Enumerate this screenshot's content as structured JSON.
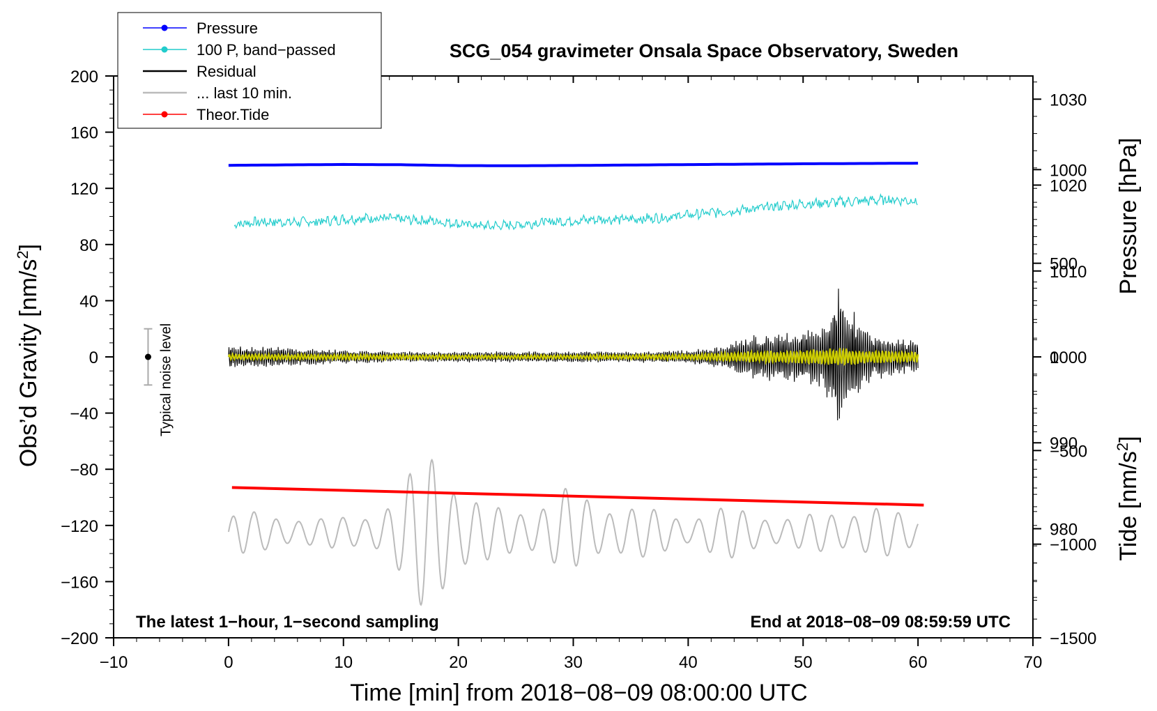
{
  "chart_data": {
    "type": "line",
    "title": "SCG_054 gravimeter Onsala Space Observatory, Sweden",
    "xlabel": "Time [min] from 2018−08−09 08:00:00 UTC",
    "ylabel_left": "Obs’d Gravity [nm/s",
    "ylabel_left_sup": "2",
    "ylabel_left_close": "]",
    "ylabel_pressure": "Pressure [hPa]",
    "ylabel_tide": "Tide [nm/s",
    "ylabel_tide_sup": "2",
    "ylabel_tide_close": "]",
    "xlim": [
      -10,
      70
    ],
    "ylim": [
      -200,
      200
    ],
    "pressure_lim": [
      967.3,
      1032.7
    ],
    "tide_lim": [
      -1500,
      1500
    ],
    "x_ticks": [
      -10,
      0,
      10,
      20,
      30,
      40,
      50,
      60,
      70
    ],
    "x_tick_labels": [
      "−10",
      "0",
      "10",
      "20",
      "30",
      "40",
      "50",
      "60",
      "70"
    ],
    "y_ticks": [
      200,
      160,
      120,
      80,
      40,
      0,
      -40,
      -80,
      -120,
      -160,
      -200
    ],
    "y_tick_labels": [
      "200",
      "160",
      "120",
      "80",
      "40",
      "0",
      "−40",
      "−80",
      "−120",
      "−160",
      "−200"
    ],
    "pressure_ticks": [
      1030,
      1020,
      1010,
      1000,
      990,
      980
    ],
    "pressure_tick_labels": [
      "1030",
      "1020",
      "1010",
      "1000",
      "990",
      "980"
    ],
    "tide_ticks": [
      1000,
      500,
      0,
      -500,
      -1000,
      -1500
    ],
    "tide_tick_labels": [
      "1000",
      "500",
      "0",
      "−500",
      "−1000",
      "−1500"
    ],
    "note_left": "The latest 1−hour, 1−second sampling",
    "note_right": "End at 2018−08−09 08:59:59 UTC",
    "noise_label": "Typical noise level",
    "noise_bar": {
      "x": -7,
      "center": 0,
      "half_range": 20
    },
    "legend": [
      {
        "label": "Pressure",
        "color": "#0000ff",
        "marker": true
      },
      {
        "label": "100 P, band−passed",
        "color": "#22cccc",
        "marker": true
      },
      {
        "label": "Residual",
        "color": "#000000",
        "marker": false
      },
      {
        "label": "... last 10 min.",
        "color": "#bbbbbb",
        "marker": false
      },
      {
        "label": "Theor.Tide",
        "color": "#ff0000",
        "marker": true
      }
    ],
    "series": [
      {
        "name": "Pressure",
        "color": "#0000ff",
        "x": [
          0,
          5,
          10,
          15,
          20,
          25,
          30,
          35,
          40,
          45,
          50,
          55,
          60
        ],
        "values": [
          136.4,
          136.7,
          137.0,
          136.8,
          136.2,
          136.1,
          136.3,
          136.6,
          136.9,
          137.2,
          137.5,
          137.7,
          137.9
        ]
      },
      {
        "name": "100 P, band−passed",
        "color": "#22cccc",
        "x": [
          0,
          2.5,
          5,
          7.5,
          10,
          12.5,
          15,
          17.5,
          20,
          22.5,
          25,
          27.5,
          30,
          32.5,
          35,
          37.5,
          40,
          42.5,
          45,
          47.5,
          50,
          52.5,
          55,
          57.5,
          60
        ],
        "values": [
          94,
          96,
          96,
          96,
          98,
          99,
          98,
          97,
          95,
          93,
          94,
          96,
          97,
          98,
          98,
          99,
          101,
          103,
          105,
          107,
          109,
          110,
          111,
          112,
          111
        ]
      },
      {
        "name": "Residual",
        "color": "#000000",
        "x": [
          0,
          5,
          10,
          15,
          20,
          25,
          30,
          35,
          40,
          43,
          45,
          47.5,
          50,
          51.5,
          52.5,
          53,
          53.5,
          55,
          56,
          57.5,
          60
        ],
        "amplitude": [
          8,
          7,
          5,
          4,
          4,
          4,
          4,
          4,
          5,
          8,
          15,
          18,
          20,
          22,
          35,
          55,
          45,
          25,
          18,
          14,
          12
        ]
      },
      {
        "name": "Residual (low−pass)",
        "color": "#cccc00",
        "x": [
          0,
          10,
          20,
          30,
          40,
          45,
          50,
          53,
          55,
          60
        ],
        "amplitude": [
          2,
          2,
          1.5,
          1.5,
          2,
          4,
          5,
          7,
          5,
          4
        ]
      },
      {
        "name": "... last 10 min.",
        "color": "#bbbbbb",
        "x": [
          0,
          1,
          2,
          4,
          6,
          8,
          10,
          12,
          14,
          15,
          16,
          17,
          18,
          19,
          20,
          22,
          24,
          26,
          28,
          30,
          32,
          34,
          36,
          38,
          40,
          42,
          44,
          46,
          48,
          50,
          52,
          54,
          56,
          58,
          60
        ],
        "center": [
          -130,
          -120,
          -125,
          -125,
          -125,
          -125,
          -125,
          -125,
          -125,
          -125,
          -125,
          -125,
          -125,
          -125,
          -125,
          -125,
          -125,
          -125,
          -125,
          -120,
          -125,
          -125,
          -125,
          -125,
          -125,
          -125,
          -125,
          -125,
          -125,
          -125,
          -125,
          -125,
          -125,
          -125,
          -125
        ],
        "amplitude": [
          12,
          20,
          15,
          14,
          12,
          10,
          12,
          15,
          22,
          30,
          45,
          60,
          72,
          60,
          35,
          20,
          18,
          20,
          25,
          30,
          22,
          22,
          18,
          15,
          12,
          18,
          18,
          15,
          12,
          12,
          15,
          18,
          20,
          15,
          12
        ]
      },
      {
        "name": "Theor.Tide",
        "color": "#ff0000",
        "x": [
          0.3,
          60.5
        ],
        "values": [
          -93,
          -105.5
        ]
      }
    ]
  }
}
